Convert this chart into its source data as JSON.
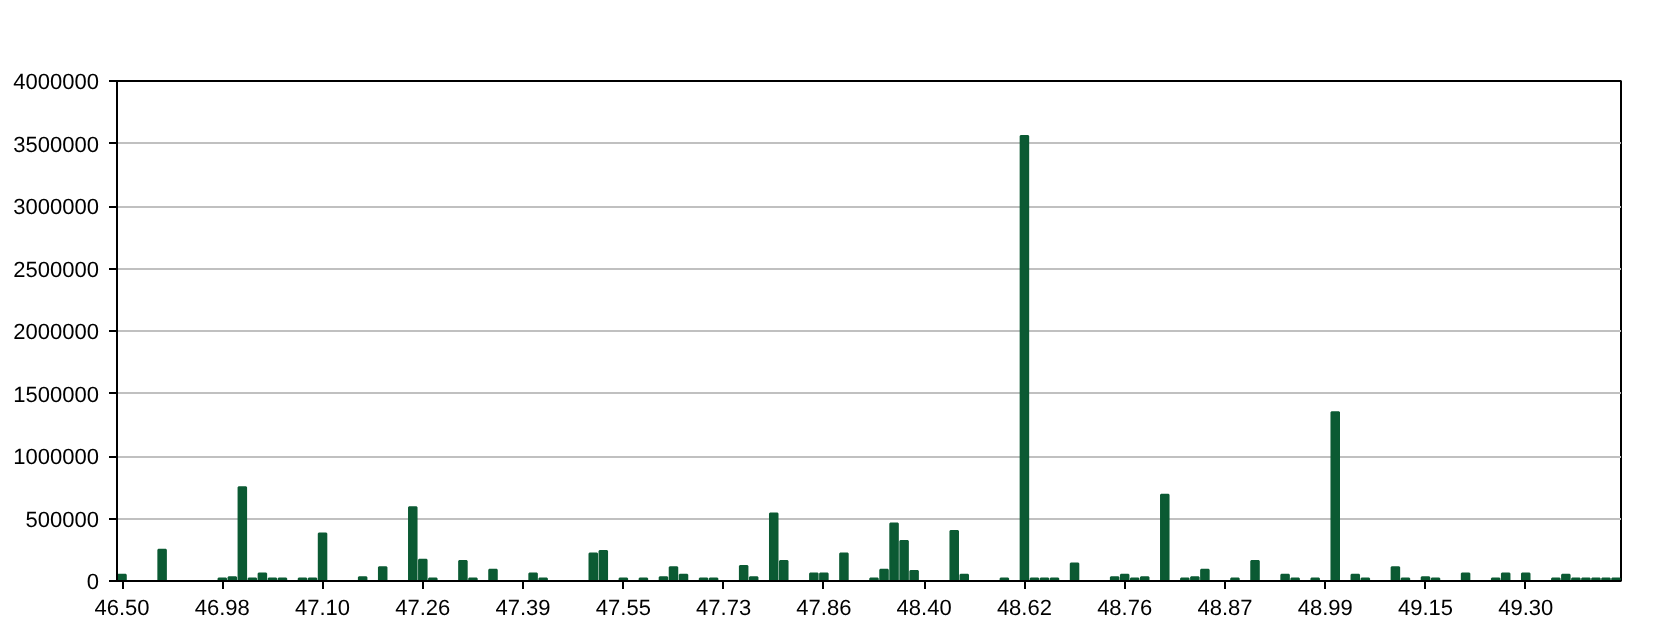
{
  "chart_data": {
    "type": "bar",
    "categories": [
      "46.50",
      null,
      null,
      null,
      null,
      null,
      null,
      null,
      null,
      null,
      "46.98",
      null,
      null,
      null,
      null,
      null,
      null,
      null,
      null,
      null,
      "47.10",
      null,
      null,
      null,
      null,
      null,
      null,
      null,
      null,
      null,
      "47.26",
      null,
      null,
      null,
      null,
      null,
      null,
      null,
      null,
      null,
      "47.39",
      null,
      null,
      null,
      null,
      null,
      null,
      null,
      null,
      null,
      "47.55",
      null,
      null,
      null,
      null,
      null,
      null,
      null,
      null,
      null,
      "47.73",
      null,
      null,
      null,
      null,
      null,
      null,
      null,
      null,
      null,
      "47.86",
      null,
      null,
      null,
      null,
      null,
      null,
      null,
      null,
      null,
      "48.40",
      null,
      null,
      null,
      null,
      null,
      null,
      null,
      null,
      null,
      "48.62",
      null,
      null,
      null,
      null,
      null,
      null,
      null,
      null,
      null,
      "48.76",
      null,
      null,
      null,
      null,
      null,
      null,
      null,
      null,
      null,
      "48.87",
      null,
      null,
      null,
      null,
      null,
      null,
      null,
      null,
      null,
      "48.99",
      null,
      null,
      null,
      null,
      null,
      null,
      null,
      null,
      null,
      "49.15",
      null,
      null,
      null,
      null,
      null,
      null,
      null,
      null,
      null,
      "49.30",
      null,
      null,
      null,
      null,
      null,
      null,
      null,
      null,
      null
    ],
    "values": [
      50000,
      0,
      0,
      0,
      250000,
      0,
      0,
      0,
      0,
      0,
      20000,
      30000,
      750000,
      20000,
      60000,
      20000,
      20000,
      0,
      20000,
      20000,
      380000,
      0,
      0,
      0,
      30000,
      0,
      110000,
      0,
      0,
      590000,
      170000,
      20000,
      0,
      0,
      160000,
      20000,
      0,
      90000,
      0,
      0,
      0,
      60000,
      20000,
      0,
      0,
      0,
      0,
      220000,
      240000,
      0,
      20000,
      0,
      20000,
      0,
      30000,
      110000,
      50000,
      0,
      20000,
      20000,
      0,
      0,
      120000,
      30000,
      0,
      540000,
      160000,
      0,
      0,
      60000,
      60000,
      0,
      220000,
      0,
      0,
      20000,
      90000,
      460000,
      320000,
      80000,
      0,
      0,
      0,
      400000,
      50000,
      0,
      0,
      0,
      20000,
      0,
      3560000,
      20000,
      20000,
      20000,
      0,
      140000,
      0,
      0,
      0,
      30000,
      50000,
      20000,
      30000,
      0,
      690000,
      0,
      20000,
      30000,
      90000,
      0,
      0,
      20000,
      0,
      160000,
      0,
      0,
      50000,
      20000,
      0,
      20000,
      0,
      1350000,
      0,
      50000,
      20000,
      0,
      0,
      110000,
      20000,
      0,
      30000,
      20000,
      0,
      0,
      60000,
      0,
      0,
      20000,
      60000,
      0,
      60000,
      0,
      0,
      20000,
      50000,
      20000,
      20000,
      20000,
      20000,
      20000
    ],
    "color": "#0b5a33",
    "ylim": [
      0,
      4000000
    ],
    "yticks": [
      0,
      500000,
      1000000,
      1500000,
      2000000,
      2500000,
      3000000,
      3500000,
      4000000
    ],
    "grid": "y"
  }
}
